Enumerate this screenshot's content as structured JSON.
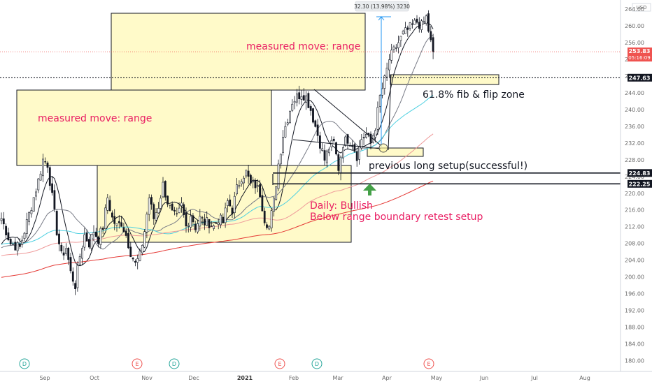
{
  "chart_data": {
    "type": "candlestick",
    "currency": "USD",
    "x_labels": [
      "Sep",
      "Oct",
      "Nov",
      "Dec",
      "2021",
      "Feb",
      "Mar",
      "Apr",
      "May",
      "Jun",
      "Jul",
      "Aug"
    ],
    "y_ticks": [
      180,
      184,
      188,
      192,
      196,
      200,
      204,
      208,
      212,
      216,
      220,
      224,
      228,
      232,
      236,
      240,
      244,
      248,
      252,
      256,
      260,
      264
    ],
    "ylim": [
      177.4,
      266.2
    ],
    "price_labels": [
      {
        "id": "last",
        "price": "253.83",
        "sub": "05:16:09",
        "value": 253.83,
        "color": "#ef5350"
      },
      {
        "id": "level-a",
        "price": "247.63",
        "value": 247.63,
        "color": "#131722"
      },
      {
        "id": "level-b",
        "price": "224.83",
        "value": 224.83,
        "color": "#131722"
      },
      {
        "id": "level-c",
        "price": "222.25",
        "value": 222.25,
        "color": "#131722"
      }
    ],
    "measure_label": "32.30 (13.98%) 3230",
    "annotations": {
      "upper_range": "measured move: range",
      "lower_range": "measured move: range",
      "fib_zone": "61.8% fib & flip zone",
      "previous_setup": "previous long setup(successful!)",
      "daily_line1": "Daily: Bullish",
      "daily_line2": "Below range boundary retest setup"
    },
    "event_markers": [
      {
        "label": "D",
        "type": "dividend"
      },
      {
        "label": "E",
        "type": "earnings"
      },
      {
        "label": "D",
        "type": "dividend"
      },
      {
        "label": "E",
        "type": "earnings"
      },
      {
        "label": "D",
        "type": "dividend"
      },
      {
        "label": "E",
        "type": "earnings"
      }
    ],
    "price_anchors": [
      [
        0,
        214
      ],
      [
        4,
        208
      ],
      [
        8,
        207
      ],
      [
        12,
        215
      ],
      [
        16,
        223
      ],
      [
        18,
        228
      ],
      [
        20,
        227
      ],
      [
        22,
        219
      ],
      [
        24,
        211
      ],
      [
        26,
        205
      ],
      [
        28,
        207
      ],
      [
        30,
        201
      ],
      [
        32,
        198
      ],
      [
        34,
        205
      ],
      [
        36,
        210
      ],
      [
        38,
        208
      ],
      [
        40,
        211
      ],
      [
        42,
        209
      ],
      [
        44,
        212
      ],
      [
        46,
        219
      ],
      [
        48,
        214
      ],
      [
        50,
        212
      ],
      [
        52,
        213
      ],
      [
        54,
        210
      ],
      [
        56,
        206
      ],
      [
        58,
        203
      ],
      [
        60,
        205
      ],
      [
        62,
        211
      ],
      [
        64,
        219
      ],
      [
        66,
        214
      ],
      [
        68,
        217
      ],
      [
        70,
        222
      ],
      [
        72,
        218
      ],
      [
        74,
        215
      ],
      [
        76,
        214
      ],
      [
        78,
        217
      ],
      [
        80,
        212
      ],
      [
        82,
        215
      ],
      [
        84,
        212
      ],
      [
        86,
        214
      ],
      [
        88,
        213
      ],
      [
        90,
        213
      ],
      [
        92,
        212
      ],
      [
        94,
        214
      ],
      [
        96,
        213
      ],
      [
        98,
        218
      ],
      [
        100,
        216
      ],
      [
        102,
        221
      ],
      [
        104,
        224
      ],
      [
        106,
        225
      ],
      [
        108,
        222
      ],
      [
        110,
        222
      ],
      [
        112,
        220
      ],
      [
        114,
        214
      ],
      [
        116,
        212
      ],
      [
        118,
        218
      ],
      [
        120,
        227
      ],
      [
        122,
        234
      ],
      [
        124,
        238
      ],
      [
        126,
        242
      ],
      [
        128,
        243
      ],
      [
        130,
        244
      ],
      [
        132,
        243
      ],
      [
        134,
        240
      ],
      [
        136,
        236
      ],
      [
        138,
        232
      ],
      [
        140,
        228
      ],
      [
        142,
        231
      ],
      [
        144,
        232
      ],
      [
        146,
        226
      ],
      [
        148,
        232
      ],
      [
        150,
        233
      ],
      [
        152,
        232
      ],
      [
        154,
        229
      ],
      [
        156,
        233
      ],
      [
        158,
        234
      ],
      [
        160,
        232
      ],
      [
        162,
        236
      ],
      [
        164,
        243
      ],
      [
        166,
        247
      ],
      [
        168,
        252
      ],
      [
        170,
        254
      ],
      [
        172,
        256
      ],
      [
        174,
        258
      ],
      [
        176,
        259
      ],
      [
        178,
        260
      ],
      [
        180,
        261
      ],
      [
        182,
        260
      ],
      [
        184,
        262
      ],
      [
        186,
        256
      ],
      [
        187,
        253.8
      ]
    ],
    "moving_averages": [
      {
        "color": "#131722",
        "period": 8
      },
      {
        "color": "#787b86",
        "period": 21
      },
      {
        "color": "#4dd0e1",
        "period": 50
      },
      {
        "color": "#ef9a9a",
        "period": 100
      },
      {
        "color": "#e53935",
        "period": 200
      }
    ]
  }
}
